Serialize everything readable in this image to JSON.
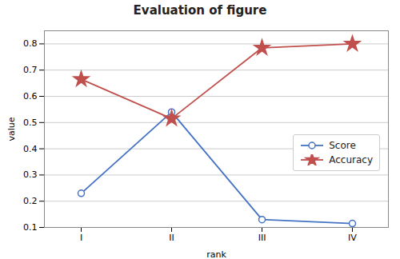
{
  "chart_data": {
    "type": "line",
    "title": "Evaluation of figure",
    "xlabel": "rank",
    "ylabel": "value",
    "categories": [
      "I",
      "II",
      "III",
      "IV"
    ],
    "series": [
      {
        "name": "Score",
        "color": "#4472C4",
        "marker": "circle",
        "values": [
          0.23,
          0.54,
          0.13,
          0.115
        ]
      },
      {
        "name": "Accuracy",
        "color": "#C0504D",
        "marker": "star",
        "values": [
          0.665,
          0.515,
          0.785,
          0.8
        ]
      }
    ],
    "ylim": [
      0.1,
      0.85
    ],
    "yticks": [
      0.1,
      0.2,
      0.3,
      0.4,
      0.5,
      0.6,
      0.7,
      0.8
    ],
    "grid": true,
    "legend": "lower right"
  }
}
